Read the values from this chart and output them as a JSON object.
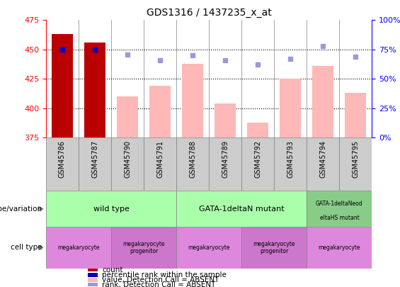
{
  "title": "GDS1316 / 1437235_x_at",
  "samples": [
    "GSM45786",
    "GSM45787",
    "GSM45790",
    "GSM45791",
    "GSM45788",
    "GSM45789",
    "GSM45792",
    "GSM45793",
    "GSM45794",
    "GSM45795"
  ],
  "count_values": [
    463,
    456,
    null,
    null,
    null,
    null,
    null,
    null,
    null,
    null
  ],
  "rank_values": [
    75,
    75,
    null,
    null,
    null,
    null,
    null,
    null,
    null,
    null
  ],
  "absent_values": [
    null,
    null,
    410,
    419,
    438,
    404,
    388,
    425,
    436,
    413
  ],
  "absent_ranks": [
    null,
    null,
    71,
    66,
    70,
    66,
    62,
    67,
    78,
    69
  ],
  "ylim": [
    375,
    475
  ],
  "ylim_right": [
    0,
    100
  ],
  "yticks_left": [
    375,
    400,
    425,
    450,
    475
  ],
  "yticks_right": [
    0,
    25,
    50,
    75,
    100
  ],
  "bar_dark_red": "#bb0000",
  "bar_pink": "#ffb8b8",
  "dot_dark_blue": "#0000cc",
  "dot_light_blue": "#9999dd",
  "sample_bg": "#cccccc",
  "geno_color_light": "#aaffaa",
  "geno_color_dark": "#88cc88",
  "cell_color_1": "#dd88dd",
  "cell_color_2": "#cc77cc",
  "genotype_groups": [
    {
      "label": "wild type",
      "start": 0,
      "end": 4,
      "color_key": "geno_color_light"
    },
    {
      "label": "GATA-1deltaN mutant",
      "start": 4,
      "end": 8,
      "color_key": "geno_color_light"
    },
    {
      "label": "GATA-1deltaNeoddeltaHS mutant",
      "start": 8,
      "end": 10,
      "color_key": "geno_color_dark"
    }
  ],
  "cell_type_groups": [
    {
      "label": "megakaryocyte",
      "start": 0,
      "end": 2,
      "color_key": "cell_color_1"
    },
    {
      "label": "megakaryocyte\nprogenitor",
      "start": 2,
      "end": 4,
      "color_key": "cell_color_2"
    },
    {
      "label": "megakaryocyte",
      "start": 4,
      "end": 6,
      "color_key": "cell_color_1"
    },
    {
      "label": "megakaryocyte\nprogenitor",
      "start": 6,
      "end": 8,
      "color_key": "cell_color_2"
    },
    {
      "label": "megakaryocyte",
      "start": 8,
      "end": 10,
      "color_key": "cell_color_1"
    }
  ]
}
